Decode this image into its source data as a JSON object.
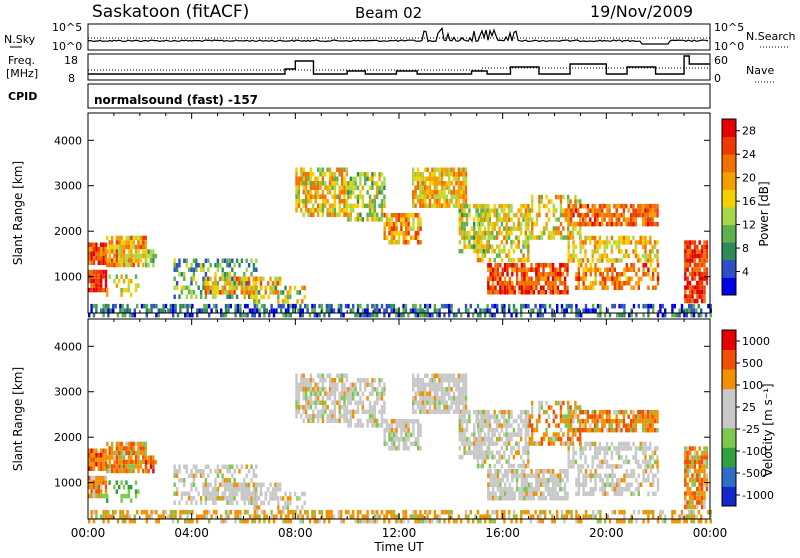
{
  "header": {
    "station": "Saskatoon (fitACF)",
    "beam": "Beam 02",
    "date": "19/Nov/2009"
  },
  "colors": {
    "axis": "#000000",
    "power_scale": [
      "#0000e6",
      "#2e4fc8",
      "#2e8a5a",
      "#5fb04e",
      "#a8d84a",
      "#f5d000",
      "#f5a000",
      "#f07000",
      "#ee3a00",
      "#e60000"
    ],
    "velocity_scale": [
      "#e60000",
      "#f05000",
      "#f29000",
      "#c8c8c8",
      "#c8c8c8",
      "#7ec850",
      "#30a040",
      "#2e6ec8",
      "#1428c8"
    ]
  },
  "panel_top": {
    "left_label": "N.Sky",
    "right_label": "N.Search",
    "left_ticks": [
      "10^5",
      "10^0"
    ],
    "right_ticks": [
      "10^5",
      "10^0"
    ]
  },
  "panel_freq": {
    "left_label_line1": "Freq.",
    "left_label_line2": "[MHz]",
    "right_label": "Nave",
    "left_ticks": [
      "18",
      "8"
    ],
    "right_ticks": [
      "60",
      "0"
    ]
  },
  "cpid": {
    "label": "CPID",
    "value": "normalsound (fast) -157"
  },
  "chart_data": [
    {
      "type": "heatmap",
      "title": "",
      "xlabel": "",
      "ylabel": "Slant Range [km]",
      "x_ticks": [
        "00:00",
        "04:00",
        "08:00",
        "12:00",
        "16:00",
        "20:00",
        "00:00"
      ],
      "y_ticks": [
        "1000",
        "2000",
        "3000",
        "4000"
      ],
      "ylim": [
        200,
        4600
      ],
      "xlim_hours": [
        0,
        24
      ],
      "colorbar_label": "Power [dB]",
      "colorbar_ticks": [
        "4",
        "8",
        "12",
        "16",
        "20",
        "24",
        "28"
      ],
      "colorbar_range": [
        0,
        30
      ]
    },
    {
      "type": "heatmap",
      "title": "",
      "xlabel": "Time UT",
      "ylabel": "Slant Range [km]",
      "x_ticks": [
        "00:00",
        "04:00",
        "08:00",
        "12:00",
        "16:00",
        "20:00",
        "00:00"
      ],
      "y_ticks": [
        "1000",
        "2000",
        "3000",
        "4000"
      ],
      "ylim": [
        200,
        4600
      ],
      "xlim_hours": [
        0,
        24
      ],
      "colorbar_label": "Velocity [m s⁻¹]",
      "colorbar_ticks": [
        "1000",
        "500",
        "100",
        "25",
        "-25",
        "-100",
        "-500",
        "-1000"
      ]
    }
  ]
}
